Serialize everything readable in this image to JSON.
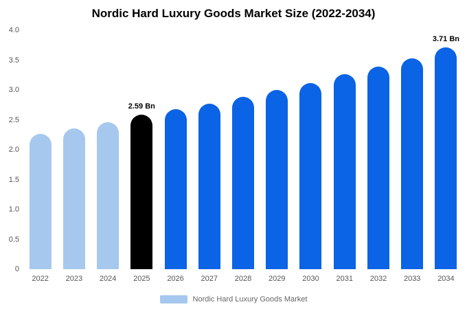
{
  "legend": {
    "label": "Nordic Hard Luxury Goods Market",
    "swatch_color": "#a6c8ee"
  },
  "colors": {
    "historical_bar": "#a6c8ee",
    "highlight_bar": "#000000",
    "forecast_bar": "#0b63e5"
  },
  "chart_data": {
    "type": "bar",
    "title": "Nordic Hard Luxury Goods Market Size (2022-2034)",
    "unit": "Bn",
    "categories": [
      "2022",
      "2023",
      "2024",
      "2025",
      "2026",
      "2027",
      "2028",
      "2029",
      "2030",
      "2031",
      "2032",
      "2033",
      "2034"
    ],
    "values": [
      2.27,
      2.36,
      2.46,
      2.59,
      2.68,
      2.77,
      2.88,
      3.0,
      3.12,
      3.26,
      3.39,
      3.53,
      3.71
    ],
    "bar_colors": [
      "#a6c8ee",
      "#a6c8ee",
      "#a6c8ee",
      "#000000",
      "#0b63e5",
      "#0b63e5",
      "#0b63e5",
      "#0b63e5",
      "#0b63e5",
      "#0b63e5",
      "#0b63e5",
      "#0b63e5",
      "#0b63e5"
    ],
    "annotations": [
      {
        "index": 3,
        "text": "2.59 Bn"
      },
      {
        "index": 12,
        "text": "3.71 Bn"
      }
    ],
    "xlabel": "",
    "ylabel": "",
    "ylim": [
      0,
      4
    ],
    "yticks": [
      {
        "value": 0,
        "label": "0"
      },
      {
        "value": 0.5,
        "label": "0.5"
      },
      {
        "value": 1,
        "label": "1.0"
      },
      {
        "value": 1.5,
        "label": "1.5"
      },
      {
        "value": 2,
        "label": "2.0"
      },
      {
        "value": 2.5,
        "label": "2.5"
      },
      {
        "value": 3,
        "label": "3.0"
      },
      {
        "value": 3.5,
        "label": "3.5"
      },
      {
        "value": 4,
        "label": "4.0"
      }
    ],
    "grid": false,
    "legend_position": "bottom"
  }
}
